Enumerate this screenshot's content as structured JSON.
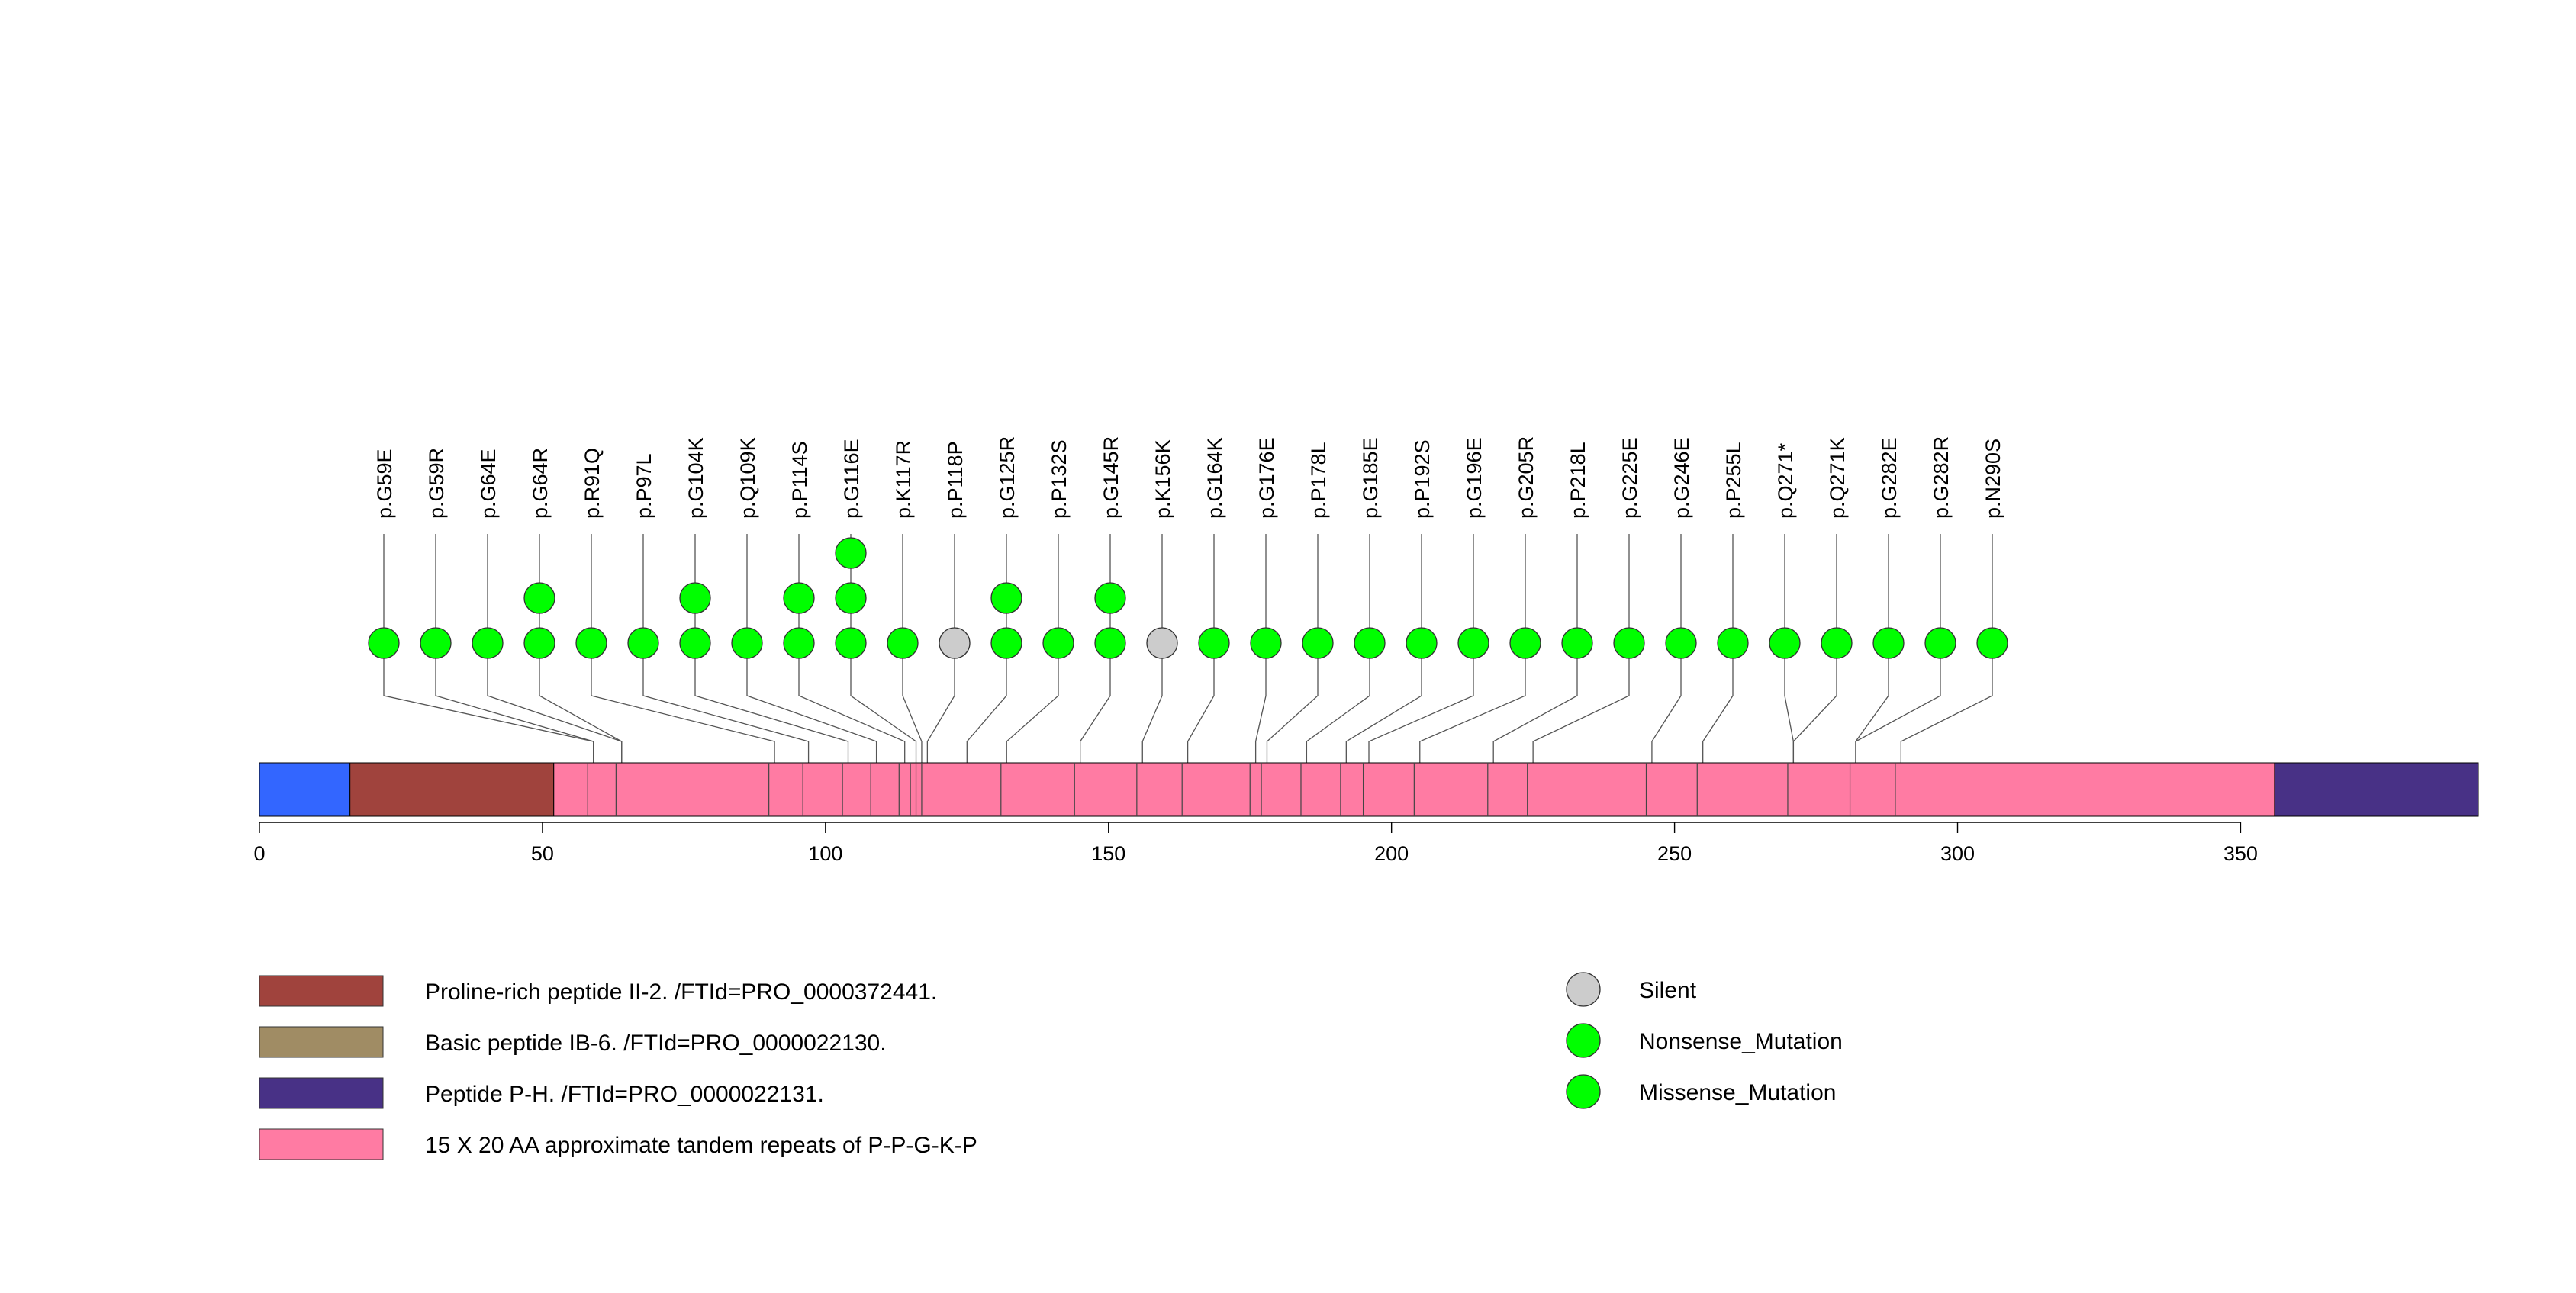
{
  "chart_data": {
    "type": "lollipop",
    "x_axis": {
      "range": [
        0,
        392
      ],
      "ticks": [
        0,
        50,
        100,
        150,
        200,
        250,
        300,
        350
      ]
    },
    "protein_length": 392,
    "regions": [
      {
        "start": 0,
        "end": 16,
        "color": "#3366ff"
      },
      {
        "start": 16,
        "end": 52,
        "color": "#a0433d"
      },
      {
        "start": 52,
        "end": 356,
        "color": "#ff7ba3"
      },
      {
        "start": 356,
        "end": 392,
        "color": "#483186"
      }
    ],
    "region_boundaries": [
      58,
      63,
      90,
      96,
      103,
      108,
      113,
      115,
      116,
      117,
      131,
      144,
      155,
      163,
      175,
      177,
      184,
      191,
      195,
      204,
      217,
      224,
      245,
      254,
      270,
      281,
      289
    ],
    "mutations": [
      {
        "label": "p.G59E",
        "position": 59,
        "stack": [
          {
            "type": "Missense_Mutation"
          }
        ]
      },
      {
        "label": "p.G59R",
        "position": 59,
        "stack": [
          {
            "type": "Missense_Mutation"
          }
        ]
      },
      {
        "label": "p.G64E",
        "position": 64,
        "stack": [
          {
            "type": "Missense_Mutation"
          }
        ]
      },
      {
        "label": "p.G64R",
        "position": 64,
        "stack": [
          {
            "type": "Missense_Mutation"
          },
          {
            "type": "Missense_Mutation"
          }
        ]
      },
      {
        "label": "p.R91Q",
        "position": 91,
        "stack": [
          {
            "type": "Missense_Mutation"
          }
        ]
      },
      {
        "label": "p.P97L",
        "position": 97,
        "stack": [
          {
            "type": "Missense_Mutation"
          }
        ]
      },
      {
        "label": "p.G104K",
        "position": 104,
        "stack": [
          {
            "type": "Missense_Mutation"
          },
          {
            "type": "Missense_Mutation"
          }
        ]
      },
      {
        "label": "p.Q109K",
        "position": 109,
        "stack": [
          {
            "type": "Missense_Mutation"
          }
        ]
      },
      {
        "label": "p.P114S",
        "position": 114,
        "stack": [
          {
            "type": "Missense_Mutation"
          },
          {
            "type": "Missense_Mutation"
          }
        ]
      },
      {
        "label": "p.G116E",
        "position": 116,
        "stack": [
          {
            "type": "Missense_Mutation"
          },
          {
            "type": "Missense_Mutation"
          },
          {
            "type": "Missense_Mutation"
          }
        ]
      },
      {
        "label": "p.K117R",
        "position": 117,
        "stack": [
          {
            "type": "Missense_Mutation"
          }
        ]
      },
      {
        "label": "p.P118P",
        "position": 118,
        "stack": [
          {
            "type": "Silent"
          }
        ]
      },
      {
        "label": "p.G125R",
        "position": 125,
        "stack": [
          {
            "type": "Missense_Mutation"
          },
          {
            "type": "Missense_Mutation"
          }
        ]
      },
      {
        "label": "p.P132S",
        "position": 132,
        "stack": [
          {
            "type": "Missense_Mutation"
          }
        ]
      },
      {
        "label": "p.G145R",
        "position": 145,
        "stack": [
          {
            "type": "Missense_Mutation"
          },
          {
            "type": "Missense_Mutation"
          }
        ]
      },
      {
        "label": "p.K156K",
        "position": 156,
        "stack": [
          {
            "type": "Silent"
          }
        ]
      },
      {
        "label": "p.G164K",
        "position": 164,
        "stack": [
          {
            "type": "Missense_Mutation"
          }
        ]
      },
      {
        "label": "p.G176E",
        "position": 176,
        "stack": [
          {
            "type": "Missense_Mutation"
          }
        ]
      },
      {
        "label": "p.P178L",
        "position": 178,
        "stack": [
          {
            "type": "Missense_Mutation"
          }
        ]
      },
      {
        "label": "p.G185E",
        "position": 185,
        "stack": [
          {
            "type": "Missense_Mutation"
          }
        ]
      },
      {
        "label": "p.P192S",
        "position": 192,
        "stack": [
          {
            "type": "Missense_Mutation"
          }
        ]
      },
      {
        "label": "p.G196E",
        "position": 196,
        "stack": [
          {
            "type": "Missense_Mutation"
          }
        ]
      },
      {
        "label": "p.G205R",
        "position": 205,
        "stack": [
          {
            "type": "Missense_Mutation"
          }
        ]
      },
      {
        "label": "p.P218L",
        "position": 218,
        "stack": [
          {
            "type": "Missense_Mutation"
          }
        ]
      },
      {
        "label": "p.G225E",
        "position": 225,
        "stack": [
          {
            "type": "Missense_Mutation"
          }
        ]
      },
      {
        "label": "p.G246E",
        "position": 246,
        "stack": [
          {
            "type": "Missense_Mutation"
          }
        ]
      },
      {
        "label": "p.P255L",
        "position": 255,
        "stack": [
          {
            "type": "Missense_Mutation"
          }
        ]
      },
      {
        "label": "p.Q271*",
        "position": 271,
        "stack": [
          {
            "type": "Nonsense_Mutation"
          }
        ]
      },
      {
        "label": "p.Q271K",
        "position": 271,
        "stack": [
          {
            "type": "Missense_Mutation"
          }
        ]
      },
      {
        "label": "p.G282E",
        "position": 282,
        "stack": [
          {
            "type": "Missense_Mutation"
          }
        ]
      },
      {
        "label": "p.G282R",
        "position": 282,
        "stack": [
          {
            "type": "Missense_Mutation"
          }
        ]
      },
      {
        "label": "p.N290S",
        "position": 290,
        "stack": [
          {
            "type": "Missense_Mutation"
          }
        ]
      }
    ],
    "region_legend": [
      {
        "label": "Proline-rich peptide II-2. /FTId=PRO_0000372441.",
        "color": "#a0433d"
      },
      {
        "label": "Basic peptide IB-6. /FTId=PRO_0000022130.",
        "color": "#a08c64"
      },
      {
        "label": "Peptide P-H. /FTId=PRO_0000022131.",
        "color": "#483186"
      },
      {
        "label": "15 X 20 AA approximate tandem repeats of P-P-G-K-P",
        "color": "#ff7ba3"
      }
    ],
    "mutation_legend": [
      {
        "label": "Silent",
        "color": "#cccccc"
      },
      {
        "label": "Nonsense_Mutation",
        "color": "#00ff00"
      },
      {
        "label": "Missense_Mutation",
        "color": "#00ff00"
      }
    ],
    "type_colors": {
      "Silent": "#cccccc",
      "Nonsense_Mutation": "#00ff00",
      "Missense_Mutation": "#00ff00"
    }
  }
}
